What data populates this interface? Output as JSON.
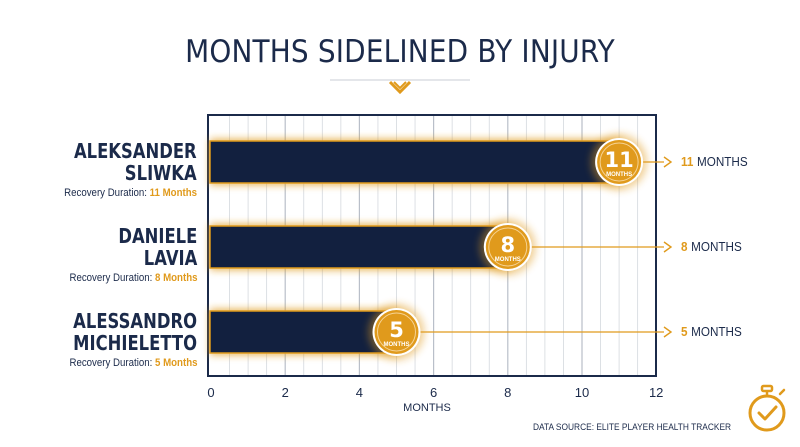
{
  "chart_data": {
    "type": "bar",
    "orientation": "horizontal",
    "title": "MONTHS SIDELINED BY INJURY",
    "xlabel": "MONTHS",
    "xlim": [
      0,
      12
    ],
    "xticks": [
      0,
      2,
      4,
      6,
      8,
      10,
      12
    ],
    "grid": true,
    "categories": [
      {
        "lines": [
          "ALEKSANDER",
          "SLIWKA"
        ],
        "recovery_prefix": "Recovery Duration:",
        "recovery_value": "11 Months",
        "badge_unit": "MONTHS",
        "side_unit": "MONTHS"
      },
      {
        "lines": [
          "DANIELE",
          "LAVIA"
        ],
        "recovery_prefix": "Recovery Duration:",
        "recovery_value": "8 Months",
        "badge_unit": "MONTHS",
        "side_unit": "MONTHS"
      },
      {
        "lines": [
          "ALESSANDRO",
          "MICHIELETTO"
        ],
        "recovery_prefix": "Recovery Duration:",
        "recovery_value": "5 Months",
        "badge_unit": "MONTHS",
        "side_unit": "MONTHS"
      }
    ],
    "values": [
      11,
      8,
      5
    ],
    "source": "DATA SOURCE: ELITE PLAYER HEALTH TRACKER"
  },
  "colors": {
    "bar": "#12203f",
    "accent": "#e09a1c",
    "text": "#1b2a4a",
    "grid": "#d4d8de",
    "frame": "#1b2a4a"
  },
  "icons": {
    "title_marker": "chevron-down-icon",
    "corner": "stopwatch-check-icon"
  }
}
